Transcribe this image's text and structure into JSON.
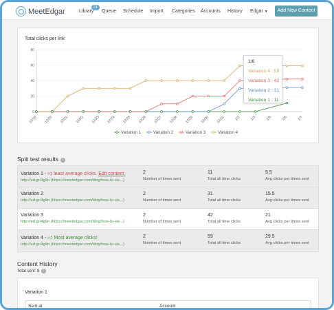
{
  "nav": {
    "logo": "MeetEdgar",
    "items": [
      {
        "label": "Library",
        "badge": "21"
      },
      {
        "label": "Queue"
      },
      {
        "label": "Schedule"
      },
      {
        "label": "Import"
      },
      {
        "label": "Categories"
      },
      {
        "label": "Accounts"
      },
      {
        "label": "History"
      },
      {
        "label": "Edgar"
      }
    ],
    "add_button": "Add New Content"
  },
  "chart_data": {
    "type": "line",
    "title": "Total clicks per link",
    "categories": [
      "12/19",
      "12/20",
      "12/21",
      "12/22",
      "12/23",
      "12/24",
      "12/25",
      "12/26",
      "12/27",
      "12/28",
      "12/29",
      "12/30",
      "12/31",
      "1/2",
      "1/3",
      "1/5",
      "1/6",
      "1/7"
    ],
    "ylim": [
      0,
      80
    ],
    "yticks": [
      0,
      20,
      40,
      60,
      80
    ],
    "series": [
      {
        "name": "Variation 1",
        "color": "#3f8f3f",
        "values": [
          0,
          0,
          0,
          0,
          0,
          0,
          0,
          0,
          0,
          0,
          0,
          0,
          0,
          0,
          0,
          null,
          11,
          null
        ]
      },
      {
        "name": "Variation 2",
        "color": "#5b8fd6",
        "values": [
          0,
          0,
          0,
          0,
          0,
          0,
          0,
          0,
          0,
          0,
          0,
          0,
          10,
          30,
          30,
          null,
          31,
          31
        ]
      },
      {
        "name": "Variation 3",
        "color": "#e0685a",
        "values": [
          0,
          0,
          0,
          0,
          0,
          0,
          0,
          0,
          10,
          10,
          20,
          20,
          20,
          40,
          40,
          null,
          42,
          42
        ]
      },
      {
        "name": "Variation 4",
        "color": "#d4a45e",
        "values": [
          0,
          0,
          20,
          30,
          30,
          30,
          30,
          40,
          40,
          40,
          40,
          40,
          40,
          59,
          59,
          null,
          59,
          59
        ]
      }
    ],
    "legend_placement": "bottom"
  },
  "tooltip": {
    "date": "1/6",
    "rows": [
      {
        "label": "Variation 4 : 59",
        "color": "#d4a45e"
      },
      {
        "label": "Variation 3 : 42",
        "color": "#e0685a"
      },
      {
        "label": "Variation 2 : 31",
        "color": "#5b8fd6"
      },
      {
        "label": "Variation 1 : 11",
        "color": "#3f8f3f"
      }
    ]
  },
  "split": {
    "title": "Split test results",
    "info_icon": "i",
    "rows": [
      {
        "name": "Variation 1 - ",
        "note_icon": "thumbs-down-icon",
        "note": "least average clicks.",
        "edit": "Edit content.",
        "short": "http://ed.gr/4g9n",
        "long": "(https://meetedgar.com/blog/how-to-vie...)",
        "times": "2",
        "times_label": "Number of times sent",
        "clicks": "11",
        "clicks_label": "Total all time clicks",
        "avg": "5.5",
        "avg_label": "Avg clicks per times sent"
      },
      {
        "name": "Variation 2",
        "short": "http://ed.gr/4g9n",
        "long": "(https://meetedgar.com/blog/how-to-vie...)",
        "times": "2",
        "times_label": "Number of times sent",
        "clicks": "31",
        "clicks_label": "Total all time clicks",
        "avg": "15.5",
        "avg_label": "Avg clicks per times sent"
      },
      {
        "name": "Variation 3",
        "short": "http://ed.gr/4g9n",
        "long": "(https://meetedgar.com/blog/how-to-vie...)",
        "times": "2",
        "times_label": "Number of times sent",
        "clicks": "42",
        "clicks_label": "Total all time clicks",
        "avg": "21",
        "avg_label": "Avg clicks per times sent"
      },
      {
        "name": "Variation 4 - ",
        "note_icon": "thumbs-up-icon",
        "note": "Most average clicks!",
        "short": "http://ed.gr/4g9n",
        "long": "(https://meetedgar.com/blog/how-to-vie...)",
        "times": "2",
        "times_label": "Number of times sent",
        "clicks": "59",
        "clicks_label": "Total all time clicks",
        "avg": "29.5",
        "avg_label": "Avg clicks per times sent"
      }
    ]
  },
  "history": {
    "title": "Content History",
    "total_sent": "Total sent: 8",
    "variation": "Variation 1",
    "col_sent_at": "Sent at",
    "col_account": "Account"
  }
}
